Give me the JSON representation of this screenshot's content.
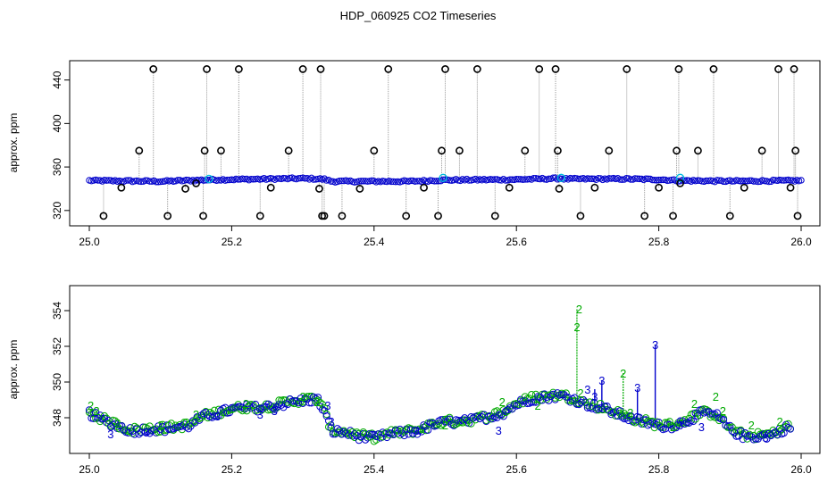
{
  "figure": {
    "title": "HDP_060925  CO2 Timeseries"
  },
  "colors": {
    "outlier": "#000000",
    "guide_line": "#9a9a9a",
    "series_blue": "#0000cc",
    "series_cyan": "#00bbdd",
    "series_green": "#00aa00"
  },
  "chart_data": [
    {
      "type": "scatter",
      "title": "",
      "xlabel": "",
      "ylabel": "approx. ppm",
      "xlim": [
        25.0,
        26.0
      ],
      "ylim": [
        310,
        452
      ],
      "x_ticks": [
        25.0,
        25.2,
        25.4,
        25.6,
        25.8,
        26.0
      ],
      "x_tick_labels": [
        "25.0",
        "25.2",
        "25.4",
        "25.6",
        "25.8",
        "26.0"
      ],
      "y_ticks": [
        320,
        360,
        400,
        440
      ],
      "y_tick_labels": [
        "320",
        "360",
        "400",
        "440"
      ],
      "y_tick_rotation": "vertical",
      "grid": false,
      "legend": "none",
      "baseline": {
        "x": [
          25.0,
          25.1,
          25.16,
          25.17,
          25.3,
          25.33,
          25.34,
          25.45,
          25.5,
          25.6,
          25.66,
          25.67,
          25.75,
          25.8,
          25.83,
          25.9,
          26.0
        ],
        "y": [
          347.5,
          346.8,
          348.0,
          348.2,
          349.5,
          348.8,
          346.8,
          346.8,
          348.0,
          348.5,
          349.5,
          349.0,
          349.0,
          348.5,
          347.5,
          347.0,
          347.5
        ]
      },
      "cyan_points": {
        "x": [
          25.168,
          25.497,
          25.663,
          25.83
        ],
        "y": [
          349,
          350,
          350,
          350
        ]
      },
      "outliers": {
        "x": [
          25.02,
          25.045,
          25.07,
          25.09,
          25.11,
          25.135,
          25.15,
          25.16,
          25.162,
          25.165,
          25.185,
          25.21,
          25.24,
          25.255,
          25.28,
          25.3,
          25.323,
          25.325,
          25.327,
          25.33,
          25.355,
          25.38,
          25.4,
          25.42,
          25.445,
          25.47,
          25.49,
          25.495,
          25.5,
          25.52,
          25.545,
          25.57,
          25.59,
          25.612,
          25.632,
          25.655,
          25.658,
          25.66,
          25.69,
          25.71,
          25.73,
          25.755,
          25.78,
          25.8,
          25.82,
          25.825,
          25.828,
          25.83,
          25.855,
          25.877,
          25.9,
          25.92,
          25.945,
          25.968,
          25.985,
          25.99,
          25.992,
          25.995
        ],
        "y": [
          315,
          341,
          375,
          450,
          315,
          340,
          345,
          315,
          375,
          450,
          375,
          450,
          315,
          341,
          375,
          450,
          340,
          450,
          315,
          315,
          315,
          340,
          375,
          450,
          315,
          341,
          315,
          375,
          450,
          375,
          450,
          315,
          341,
          375,
          450,
          450,
          375,
          340,
          315,
          341,
          375,
          450,
          315,
          341,
          315,
          375,
          450,
          345,
          375,
          450,
          315,
          341,
          375,
          450,
          341,
          450,
          375,
          315
        ]
      }
    },
    {
      "type": "scatter",
      "title": "",
      "xlabel": "",
      "ylabel": "approx. ppm",
      "xlim": [
        25.0,
        26.0
      ],
      "ylim": [
        346.3,
        355.0
      ],
      "x_ticks": [
        25.0,
        25.2,
        25.4,
        25.6,
        25.8,
        26.0
      ],
      "x_tick_labels": [
        "25.0",
        "25.2",
        "25.4",
        "25.6",
        "25.8",
        "26.0"
      ],
      "y_ticks": [
        348,
        350,
        352,
        354
      ],
      "y_tick_labels": [
        "348",
        "350",
        "352",
        "354"
      ],
      "y_tick_rotation": "vertical",
      "grid": false,
      "legend": "none",
      "baseline": {
        "x": [
          25.0,
          25.02,
          25.04,
          25.06,
          25.08,
          25.1,
          25.12,
          25.14,
          25.16,
          25.18,
          25.2,
          25.22,
          25.24,
          25.26,
          25.28,
          25.3,
          25.32,
          25.33,
          25.34,
          25.36,
          25.38,
          25.4,
          25.42,
          25.44,
          25.46,
          25.48,
          25.5,
          25.52,
          25.54,
          25.56,
          25.58,
          25.6,
          25.62,
          25.64,
          25.66,
          25.68,
          25.7,
          25.72,
          25.74,
          25.76,
          25.78,
          25.8,
          25.82,
          25.84,
          25.86,
          25.88,
          25.9,
          25.92,
          25.94,
          25.96,
          25.98
        ],
        "y": [
          348.3,
          347.9,
          347.6,
          347.3,
          347.4,
          347.4,
          347.5,
          347.6,
          348.1,
          348.3,
          348.5,
          348.6,
          348.6,
          348.7,
          348.9,
          349.0,
          349.1,
          348.4,
          347.3,
          347.2,
          347.0,
          346.9,
          347.1,
          347.2,
          347.3,
          347.6,
          347.8,
          347.8,
          347.9,
          348.1,
          348.3,
          348.8,
          349.1,
          349.2,
          349.3,
          349.1,
          348.8,
          348.6,
          348.3,
          348.0,
          347.8,
          347.6,
          347.6,
          347.9,
          348.3,
          348.2,
          347.4,
          347.0,
          347.0,
          347.1,
          347.5
        ]
      },
      "labels_2": {
        "text": "2",
        "x": [
          25.002,
          25.01,
          25.04,
          25.1,
          25.15,
          25.22,
          25.3,
          25.32,
          25.5,
          25.58,
          25.63,
          25.685,
          25.688,
          25.69,
          25.75,
          25.76,
          25.82,
          25.85,
          25.88,
          25.89,
          25.93,
          25.97
        ],
        "y": [
          348.7,
          348.4,
          347.7,
          347.6,
          348.2,
          348.8,
          349.2,
          348.9,
          347.6,
          348.9,
          348.7,
          353.1,
          354.1,
          349.4,
          350.5,
          348.3,
          347.5,
          348.8,
          349.2,
          348.4,
          347.6,
          347.8
        ]
      },
      "labels_3": {
        "text": "3",
        "x": [
          25.03,
          25.08,
          25.18,
          25.24,
          25.26,
          25.335,
          25.34,
          25.46,
          25.575,
          25.7,
          25.71,
          25.72,
          25.77,
          25.795,
          25.83,
          25.86,
          25.95
        ],
        "y": [
          347.1,
          347.2,
          348.1,
          348.2,
          348.4,
          348.7,
          347.8,
          347.3,
          347.3,
          349.6,
          349.2,
          350.1,
          349.7,
          352.1,
          347.6,
          347.5,
          346.9
        ]
      },
      "green_spikes": {
        "x": [
          25.685,
          25.75
        ],
        "y": [
          354.1,
          350.5
        ]
      },
      "blue_spikes": {
        "x": [
          25.71,
          25.72,
          25.77,
          25.795
        ],
        "y": [
          349.6,
          350.1,
          349.6,
          352.1
        ]
      }
    }
  ]
}
